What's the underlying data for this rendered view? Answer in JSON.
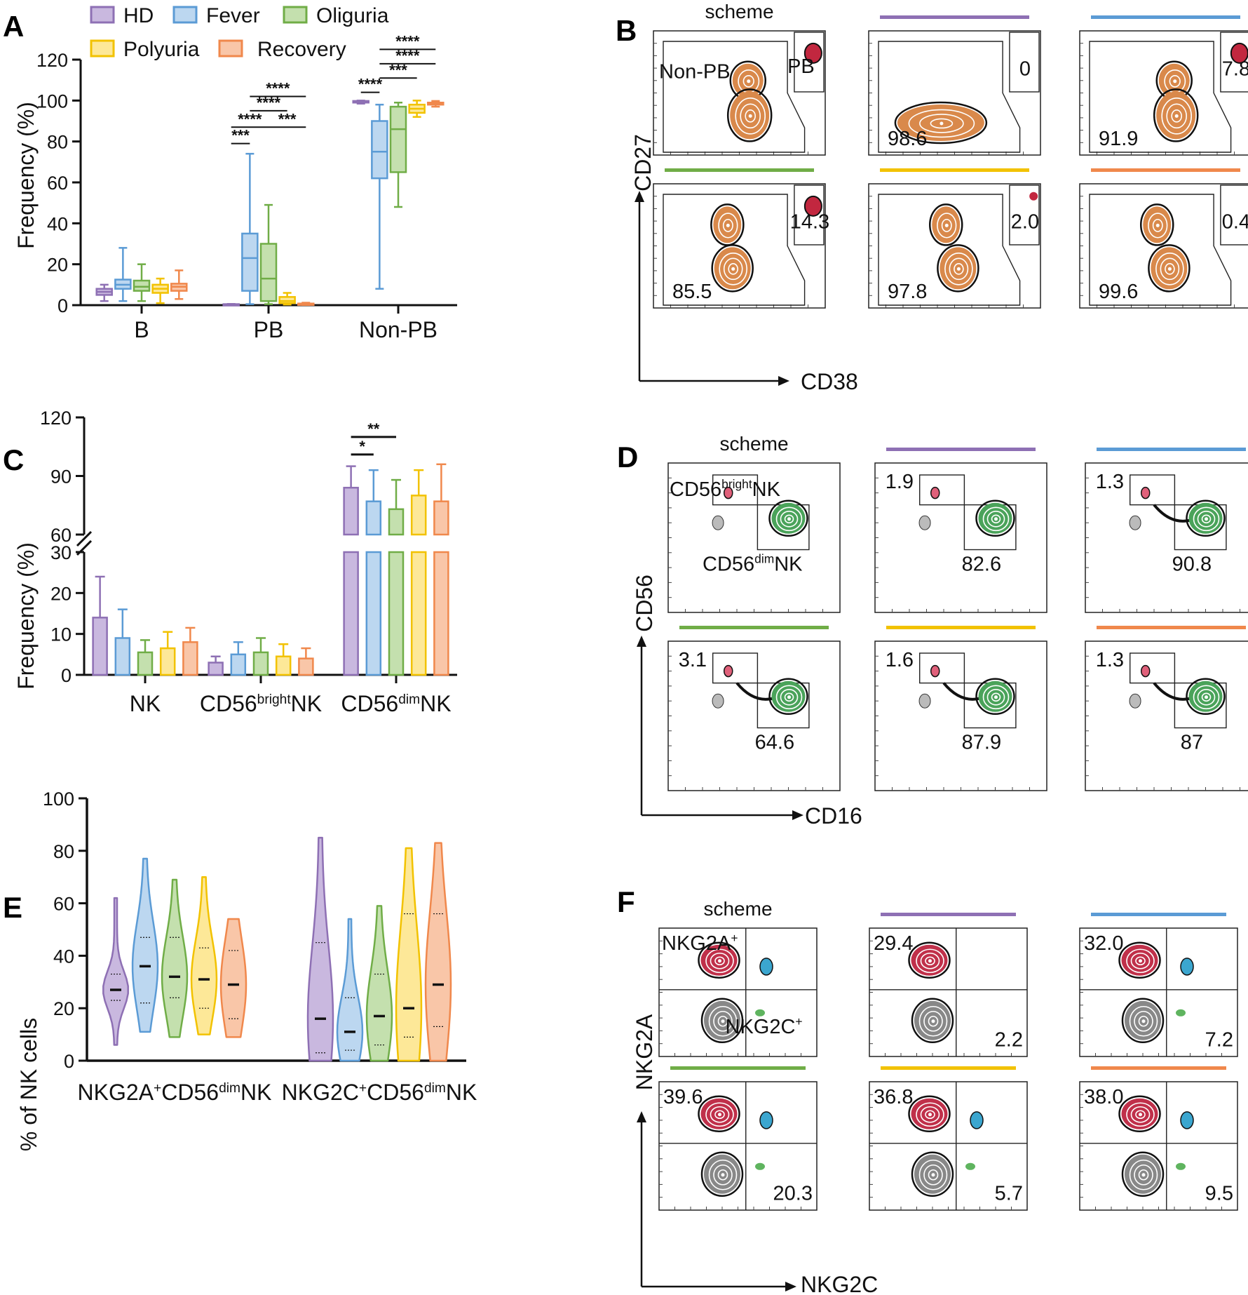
{
  "groups": [
    "HD",
    "Fever",
    "Oliguria",
    "Polyuria",
    "Recovery"
  ],
  "colors": {
    "HD": "#8e70b4",
    "Fever": "#5b9bd5",
    "Oliguria": "#70ad47",
    "Polyuria": "#f2c200",
    "Recovery": "#f0884c"
  },
  "fills": {
    "HD": "#c9b8df",
    "Fever": "#bcd7f0",
    "Oliguria": "#c4e0ae",
    "Polyuria": "#fde898",
    "Recovery": "#f9c6a8"
  },
  "panels": {
    "A": "A",
    "B": "B",
    "C": "C",
    "D": "D",
    "E": "E",
    "F": "F"
  },
  "scheme_label": "scheme",
  "chart_data": [
    {
      "id": "A",
      "type": "box",
      "ylabel": "Frequency (%)",
      "ylim": [
        0,
        120
      ],
      "yticks": [
        "0",
        "20",
        "40",
        "60",
        "80",
        "100",
        "120"
      ],
      "categories": [
        "B",
        "PB",
        "Non-PB"
      ],
      "series": [
        {
          "name": "HD",
          "boxes": [
            {
              "min": 2,
              "q1": 5,
              "med": 6.5,
              "q3": 8,
              "max": 10
            },
            {
              "min": 0.1,
              "q1": 0.2,
              "med": 0.3,
              "q3": 0.5,
              "max": 0.6
            },
            {
              "min": 98.5,
              "q1": 99,
              "med": 99.5,
              "q3": 99.8,
              "max": 100
            }
          ]
        },
        {
          "name": "Fever",
          "boxes": [
            {
              "min": 2,
              "q1": 8,
              "med": 10,
              "q3": 12.5,
              "max": 28
            },
            {
              "min": 0.5,
              "q1": 7,
              "med": 23,
              "q3": 35,
              "max": 74
            },
            {
              "min": 8,
              "q1": 62,
              "med": 75,
              "q3": 90,
              "max": 98
            }
          ]
        },
        {
          "name": "Oliguria",
          "boxes": [
            {
              "min": 2,
              "q1": 7,
              "med": 9,
              "q3": 12,
              "max": 20
            },
            {
              "min": 0.5,
              "q1": 2,
              "med": 13,
              "q3": 30,
              "max": 49
            },
            {
              "min": 48,
              "q1": 65,
              "med": 86,
              "q3": 97,
              "max": 99
            }
          ]
        },
        {
          "name": "Polyuria",
          "boxes": [
            {
              "min": 1,
              "q1": 6,
              "med": 8,
              "q3": 10,
              "max": 13
            },
            {
              "min": 0.3,
              "q1": 1,
              "med": 2,
              "q3": 4,
              "max": 6
            },
            {
              "min": 92,
              "q1": 94,
              "med": 96,
              "q3": 98,
              "max": 100
            }
          ]
        },
        {
          "name": "Recovery",
          "boxes": [
            {
              "min": 3,
              "q1": 7,
              "med": 9,
              "q3": 10.5,
              "max": 17
            },
            {
              "min": 0.1,
              "q1": 0.3,
              "med": 0.5,
              "q3": 0.8,
              "max": 1.2
            },
            {
              "min": 97,
              "q1": 98,
              "med": 98.5,
              "q3": 99,
              "max": 99.8
            }
          ]
        }
      ],
      "significance": [
        {
          "cat": 1,
          "a": 0,
          "b": 1,
          "label": "***",
          "y": 79
        },
        {
          "cat": 1,
          "a": 0,
          "b": 2,
          "label": "****",
          "y": 87
        },
        {
          "cat": 1,
          "a": 1,
          "b": 3,
          "label": "****",
          "y": 95
        },
        {
          "cat": 1,
          "a": 1,
          "b": 4,
          "label": "****",
          "y": 102
        },
        {
          "cat": 1,
          "a": 2,
          "b": 4,
          "label": "***",
          "y": 87
        },
        {
          "cat": 2,
          "a": 0,
          "b": 1,
          "label": "****",
          "y": 104
        },
        {
          "cat": 2,
          "a": 1,
          "b": 3,
          "label": "***",
          "y": 111
        },
        {
          "cat": 2,
          "a": 1,
          "b": 4,
          "label": "****",
          "y": 118
        },
        {
          "cat": 2,
          "a": 1,
          "b": 5,
          "label": "****",
          "y": 125
        }
      ]
    },
    {
      "id": "C",
      "type": "bar",
      "ylabel": "Frequency (%)",
      "ylim_low": [
        0,
        30
      ],
      "ylim_high": [
        60,
        120
      ],
      "yticks_low": [
        "0",
        "10",
        "20",
        "30"
      ],
      "yticks_high": [
        "60",
        "90",
        "120"
      ],
      "categories": [
        "NK",
        "CD56",
        "CD56"
      ],
      "category_sups": [
        "",
        "bright",
        "dim"
      ],
      "category_tails": [
        "",
        "NK",
        "NK"
      ],
      "series": [
        {
          "name": "HD",
          "values": [
            14,
            3,
            84
          ],
          "errors": [
            10,
            1.5,
            11
          ]
        },
        {
          "name": "Fever",
          "values": [
            9,
            5,
            77
          ],
          "errors": [
            7,
            3,
            16
          ]
        },
        {
          "name": "Oliguria",
          "values": [
            5.5,
            5.5,
            73
          ],
          "errors": [
            3,
            3.5,
            15
          ]
        },
        {
          "name": "Polyuria",
          "values": [
            6.5,
            4.5,
            80
          ],
          "errors": [
            4,
            3,
            13
          ]
        },
        {
          "name": "Recovery",
          "values": [
            8,
            4,
            77
          ],
          "errors": [
            3.5,
            2.5,
            19
          ]
        }
      ],
      "significance": [
        {
          "cat": 2,
          "a": 0,
          "b": 1,
          "label": "*",
          "y": 101
        },
        {
          "cat": 2,
          "a": 0,
          "b": 2,
          "label": "**",
          "y": 110
        }
      ]
    },
    {
      "id": "E",
      "type": "violin",
      "ylabel": "% of NK cells",
      "ylim": [
        0,
        100
      ],
      "yticks": [
        "0",
        "20",
        "40",
        "60",
        "80",
        "100"
      ],
      "categories": [
        "NKG2A",
        "NKG2C"
      ],
      "category_sups": [
        "+",
        "+"
      ],
      "category_mids": [
        "CD56",
        "CD56"
      ],
      "category_sups2": [
        "dim",
        "dim"
      ],
      "category_tails": [
        "NK",
        "NK"
      ],
      "series": [
        {
          "name": "HD",
          "violins": [
            {
              "min": 6,
              "q1": 23,
              "med": 27,
              "q3": 33,
              "max": 62
            },
            {
              "min": 0,
              "q1": 3,
              "med": 16,
              "q3": 45,
              "max": 85
            }
          ]
        },
        {
          "name": "Fever",
          "violins": [
            {
              "min": 11,
              "q1": 22,
              "med": 36,
              "q3": 47,
              "max": 77
            },
            {
              "min": 0,
              "q1": 4,
              "med": 11,
              "q3": 24,
              "max": 54
            }
          ]
        },
        {
          "name": "Oliguria",
          "violins": [
            {
              "min": 9,
              "q1": 24,
              "med": 32,
              "q3": 47,
              "max": 69
            },
            {
              "min": 0,
              "q1": 6,
              "med": 17,
              "q3": 33,
              "max": 59
            }
          ]
        },
        {
          "name": "Polyuria",
          "violins": [
            {
              "min": 10,
              "q1": 20,
              "med": 31,
              "q3": 43,
              "max": 70
            },
            {
              "min": 0,
              "q1": 9,
              "med": 20,
              "q3": 56,
              "max": 81
            }
          ]
        },
        {
          "name": "Recovery",
          "violins": [
            {
              "min": 9,
              "q1": 16,
              "med": 29,
              "q3": 42,
              "max": 54
            },
            {
              "min": 0,
              "q1": 13,
              "med": 29,
              "q3": 56,
              "max": 83
            }
          ]
        }
      ]
    }
  ],
  "flow": {
    "B": {
      "xlabel": "CD38",
      "ylabel": "CD27",
      "scheme_gates": [
        "Non-PB",
        "PB"
      ],
      "plots": [
        {
          "group": "scheme",
          "top": "",
          "bottom": ""
        },
        {
          "group": "HD",
          "top": "0",
          "bottom": "98.6"
        },
        {
          "group": "Fever",
          "top": "7.8",
          "bottom": "91.9"
        },
        {
          "group": "Oliguria",
          "top": "14.3",
          "bottom": "85.5"
        },
        {
          "group": "Polyuria",
          "top": "2.0",
          "bottom": "97.8"
        },
        {
          "group": "Recovery",
          "top": "0.4",
          "bottom": "99.6"
        }
      ]
    },
    "D": {
      "xlabel": "CD16",
      "ylabel": "CD56",
      "scheme_bright": "CD56",
      "scheme_bright_sup": "bright",
      "scheme_bright_tail": "NK",
      "scheme_dim": "CD56",
      "scheme_dim_sup": "dim",
      "scheme_dim_tail": "NK",
      "plots": [
        {
          "group": "scheme",
          "top": "",
          "bottom": ""
        },
        {
          "group": "HD",
          "top": "1.9",
          "bottom": "82.6"
        },
        {
          "group": "Fever",
          "top": "1.3",
          "bottom": "90.8"
        },
        {
          "group": "Oliguria",
          "top": "3.1",
          "bottom": "64.6"
        },
        {
          "group": "Polyuria",
          "top": "1.6",
          "bottom": "87.9"
        },
        {
          "group": "Recovery",
          "top": "1.3",
          "bottom": "87"
        }
      ]
    },
    "F": {
      "xlabel": "NKG2C",
      "ylabel": "NKG2A",
      "scheme_a": "NKG2A",
      "scheme_a_sup": "+",
      "scheme_c": "NKG2C",
      "scheme_c_sup": "+",
      "plots": [
        {
          "group": "scheme",
          "top": "",
          "bottom": ""
        },
        {
          "group": "HD",
          "top": "29.4",
          "bottom": "2.2"
        },
        {
          "group": "Fever",
          "top": "32.0",
          "bottom": "7.2"
        },
        {
          "group": "Oliguria",
          "top": "39.6",
          "bottom": "20.3"
        },
        {
          "group": "Polyuria",
          "top": "36.8",
          "bottom": "5.7"
        },
        {
          "group": "Recovery",
          "top": "38.0",
          "bottom": "9.5"
        }
      ]
    }
  }
}
